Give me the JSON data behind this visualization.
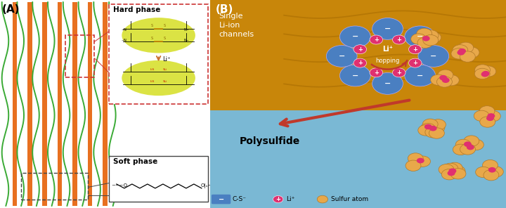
{
  "fig_width": 7.2,
  "fig_height": 2.96,
  "dpi": 100,
  "panel_A_label": "(A)",
  "panel_B_label": "(B)",
  "hard_phase_label": "Hard phase",
  "soft_phase_label": "Soft phase",
  "single_liion_label": "Single\nLi-ion\nchannels",
  "polysulfide_label": "Polysulfide",
  "legend_cs": "C-S⁻",
  "legend_li": "Li⁺",
  "legend_s": "Sulfur atom",
  "bg_color_A": "#ffffff",
  "bg_color_B_top": "#c8860a",
  "bg_color_B_bottom": "#7ab8d4",
  "wave_green": "#3aaa35",
  "wave_orange": "#e87020",
  "blue_ion_color": "#4a7fc1",
  "pink_ion_color": "#e03070",
  "sulfur_color": "#e8a84a",
  "arrow_color": "#c0392b",
  "hard_phase_box_color": "#cc3333",
  "yellow_ellipse_color": "#ccd820"
}
